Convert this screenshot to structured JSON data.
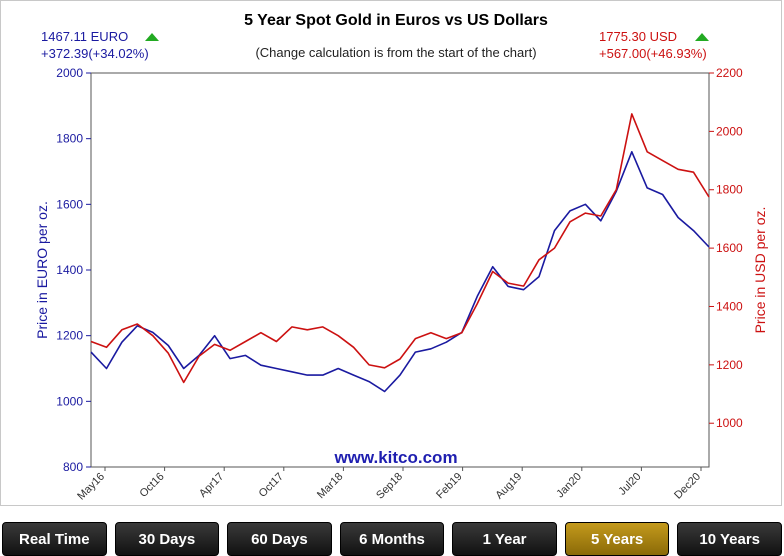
{
  "header": {
    "title": "5 Year Spot Gold in Euros vs US Dollars",
    "subtitle": "(Change calculation is from the start of the chart)",
    "euro_price": "1467.11 EURO",
    "euro_change": "+372.39(+34.02%)",
    "usd_price": "1775.30 USD",
    "usd_change": "+567.00(+46.93%)",
    "watermark": "www.kitco.com",
    "up_color": "#22aa22"
  },
  "chart_data": {
    "type": "line",
    "title": "5 Year Spot Gold in Euros vs US Dollars",
    "ylabel_left": "Price in EURO per oz.",
    "ylabel_right": "Price in USD per oz.",
    "ylim_left": [
      800,
      2000
    ],
    "ylim_right": [
      850,
      2200
    ],
    "yticks_left": [
      "800",
      "1000",
      "1200",
      "1400",
      "1600",
      "1800",
      "2000"
    ],
    "yticks_right": [
      "1000",
      "1200",
      "1400",
      "1600",
      "1800",
      "2000",
      "2200"
    ],
    "xticks": [
      "May16",
      "Oct16",
      "Apr17",
      "Oct17",
      "Mar18",
      "Sep18",
      "Feb19",
      "Aug19",
      "Jan20",
      "Jul20",
      "Dec20"
    ],
    "grid": false,
    "series": [
      {
        "axis": "left",
        "color": "#1a1aa0",
        "values": [
          1150,
          1100,
          1180,
          1230,
          1210,
          1170,
          1100,
          1140,
          1200,
          1130,
          1140,
          1110,
          1100,
          1090,
          1080,
          1080,
          1100,
          1080,
          1060,
          1030,
          1080,
          1150,
          1160,
          1180,
          1210,
          1320,
          1410,
          1350,
          1340,
          1380,
          1520,
          1580,
          1600,
          1550,
          1640,
          1760,
          1650,
          1630,
          1560,
          1520,
          1470
        ]
      },
      {
        "axis": "right",
        "color": "#cc1111",
        "values": [
          1280,
          1260,
          1320,
          1340,
          1300,
          1240,
          1140,
          1230,
          1270,
          1250,
          1280,
          1310,
          1280,
          1330,
          1320,
          1330,
          1300,
          1260,
          1200,
          1190,
          1220,
          1290,
          1310,
          1290,
          1310,
          1410,
          1520,
          1480,
          1470,
          1560,
          1600,
          1690,
          1720,
          1710,
          1800,
          2060,
          1930,
          1900,
          1870,
          1860,
          1775
        ]
      }
    ]
  },
  "buttons": [
    "Real Time",
    "30 Days",
    "60 Days",
    "6 Months",
    "1 Year",
    "5 Years",
    "10 Years"
  ],
  "active_button": "5 Years"
}
